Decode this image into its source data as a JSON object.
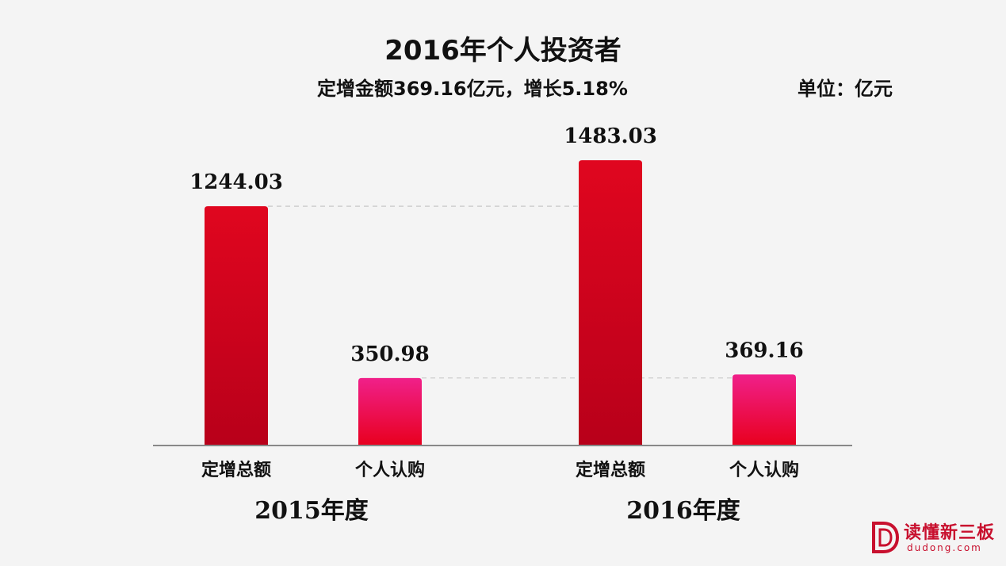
{
  "chart_data": {
    "type": "bar",
    "title": "2016年个人投资者",
    "subtitle": "定增金额369.16亿元，增长5.18%",
    "unit_label": "单位：亿元",
    "groups": [
      {
        "label": "2015年度",
        "bars": [
          {
            "category": "定增总额",
            "value": 1244.03,
            "label": "1244.03",
            "color": "#d0021b"
          },
          {
            "category": "个人认购",
            "value": 350.98,
            "label": "350.98",
            "color": "#e8157a"
          }
        ]
      },
      {
        "label": "2016年度",
        "bars": [
          {
            "category": "定增总额",
            "value": 1483.03,
            "label": "1483.03",
            "color": "#d0021b"
          },
          {
            "category": "个人认购",
            "value": 369.16,
            "label": "369.16",
            "color": "#e8157a"
          }
        ]
      }
    ],
    "ylim": [
      0,
      1600
    ],
    "grid": false,
    "legend": "none"
  },
  "logo": {
    "text": "读懂新三板",
    "sub": "dudong.com",
    "icon": "dd-logo-icon"
  }
}
